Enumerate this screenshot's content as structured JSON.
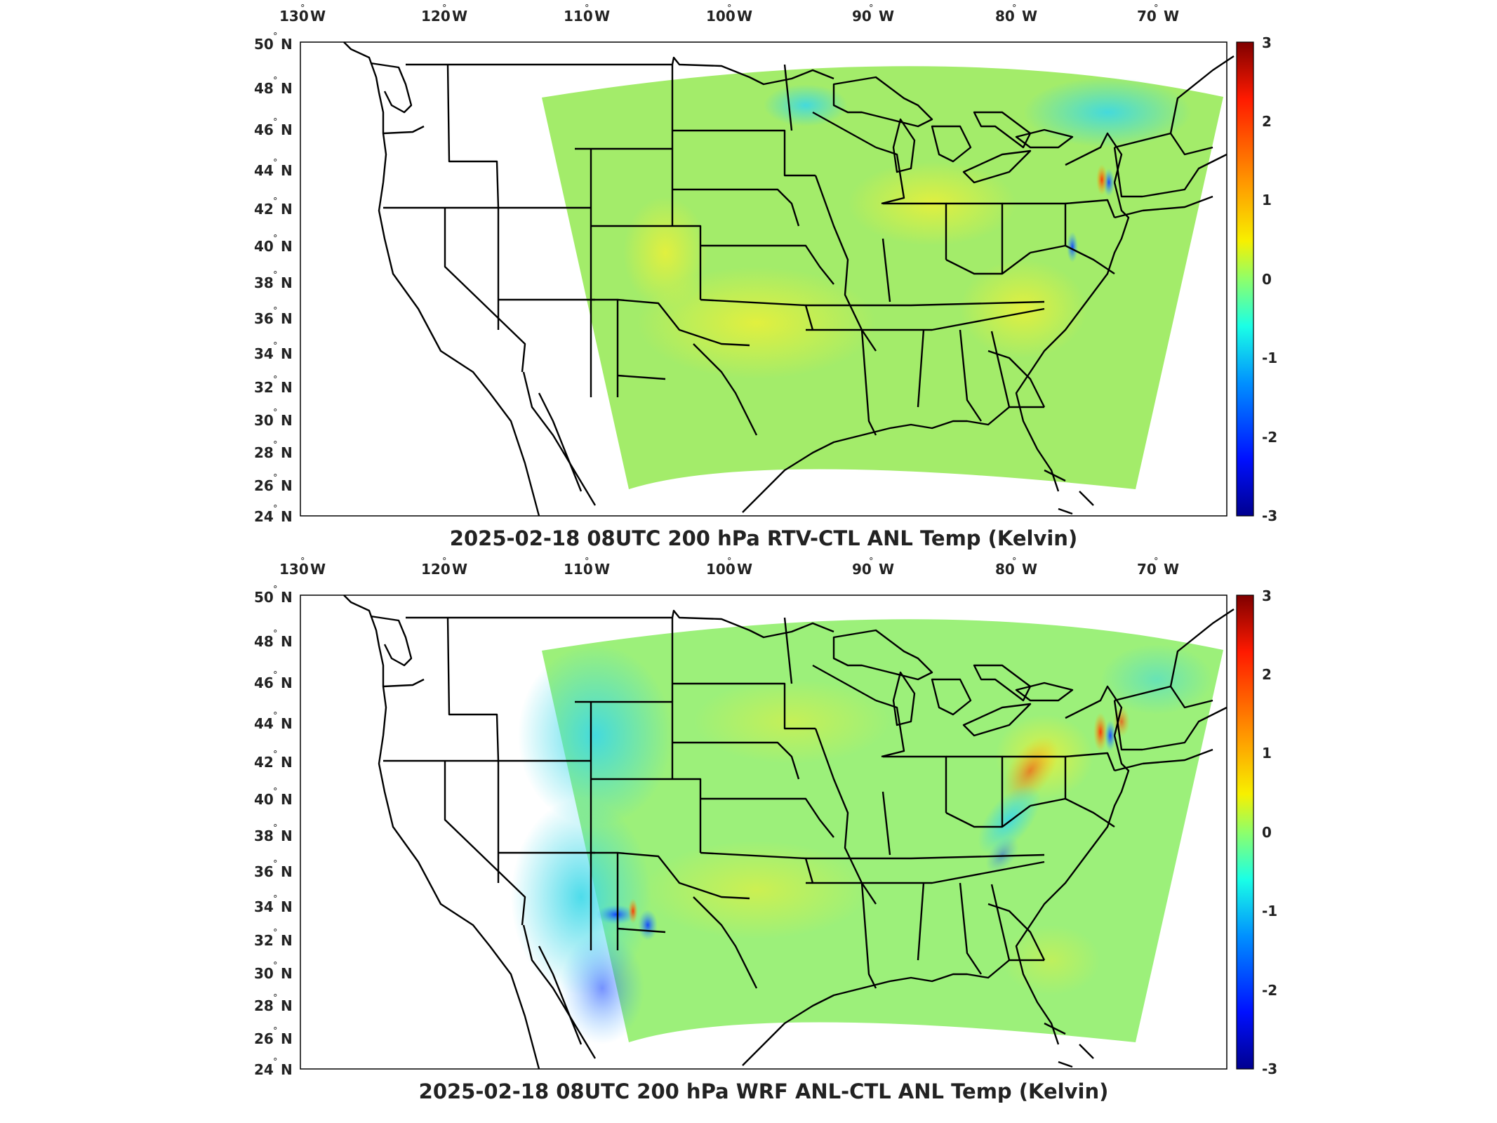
{
  "colorbar": {
    "ticks": [
      "3",
      "2",
      "1",
      "0",
      "-1",
      "-2",
      "-3"
    ],
    "colors": [
      "#7f0000",
      "#ff1a00",
      "#ff9a00",
      "#f7f000",
      "#8fff6a",
      "#1affe6",
      "#0090ff",
      "#0010ff",
      "#00008f"
    ]
  },
  "panels": [
    {
      "title": "2025-02-18 08UTC 200 hPa RTV-CTL ANL Temp (Kelvin)",
      "lon_labels": [
        {
          "v": "130",
          "h": "W"
        },
        {
          "v": "120",
          "h": "W"
        },
        {
          "v": "110",
          "h": "W"
        },
        {
          "v": "100",
          "h": "W"
        },
        {
          "v": "90",
          "h": "W"
        },
        {
          "v": "80",
          "h": "W"
        },
        {
          "v": "70",
          "h": "W"
        }
      ],
      "lat_labels": [
        {
          "v": "50",
          "h": "N"
        },
        {
          "v": "48",
          "h": "N"
        },
        {
          "v": "46",
          "h": "N"
        },
        {
          "v": "44",
          "h": "N"
        },
        {
          "v": "42",
          "h": "N"
        },
        {
          "v": "40",
          "h": "N"
        },
        {
          "v": "38",
          "h": "N"
        },
        {
          "v": "36",
          "h": "N"
        },
        {
          "v": "34",
          "h": "N"
        },
        {
          "v": "32",
          "h": "N"
        },
        {
          "v": "30",
          "h": "N"
        },
        {
          "v": "28",
          "h": "N"
        },
        {
          "v": "26",
          "h": "N"
        },
        {
          "v": "24",
          "h": "N"
        }
      ],
      "field_color": "#a3ec6a"
    },
    {
      "title": "2025-02-18 08UTC 200 hPa WRF ANL-CTL ANL Temp (Kelvin)",
      "lon_labels": [
        {
          "v": "130",
          "h": "W"
        },
        {
          "v": "120",
          "h": "W"
        },
        {
          "v": "110",
          "h": "W"
        },
        {
          "v": "100",
          "h": "W"
        },
        {
          "v": "90",
          "h": "W"
        },
        {
          "v": "80",
          "h": "W"
        },
        {
          "v": "70",
          "h": "W"
        }
      ],
      "lat_labels": [
        {
          "v": "50",
          "h": "N"
        },
        {
          "v": "48",
          "h": "N"
        },
        {
          "v": "46",
          "h": "N"
        },
        {
          "v": "44",
          "h": "N"
        },
        {
          "v": "42",
          "h": "N"
        },
        {
          "v": "40",
          "h": "N"
        },
        {
          "v": "38",
          "h": "N"
        },
        {
          "v": "36",
          "h": "N"
        },
        {
          "v": "34",
          "h": "N"
        },
        {
          "v": "32",
          "h": "N"
        },
        {
          "v": "30",
          "h": "N"
        },
        {
          "v": "28",
          "h": "N"
        },
        {
          "v": "26",
          "h": "N"
        },
        {
          "v": "24",
          "h": "N"
        }
      ],
      "field_color": "#9cf07a"
    }
  ]
}
